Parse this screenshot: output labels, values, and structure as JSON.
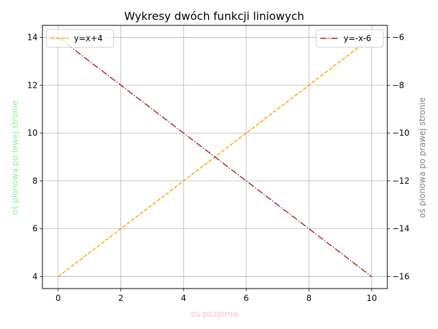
{
  "chart_data": {
    "type": "line",
    "title": "Wykresy dwóch funkcji liniowych",
    "xlabel": "oś pozioma",
    "ylabel_left": "oś pionowa po lewej stronie",
    "ylabel_right": "oś pionowa po prawej stronie",
    "xlim": [
      -0.5,
      10.5
    ],
    "ylim_left": [
      3.5,
      14.5
    ],
    "ylim_right": [
      -16.5,
      -5.5
    ],
    "x_ticks": [
      0,
      2,
      4,
      6,
      8,
      10
    ],
    "y_left_ticks": [
      4,
      6,
      8,
      10,
      12,
      14
    ],
    "y_right_ticks": [
      -16,
      -14,
      -12,
      -10,
      -8,
      -6
    ],
    "x_tick_labels": [
      "0",
      "2",
      "4",
      "6",
      "8",
      "10"
    ],
    "y_left_tick_labels": [
      "4",
      "6",
      "8",
      "10",
      "12",
      "14"
    ],
    "y_right_tick_labels": [
      "−16",
      "−14",
      "−12",
      "−10",
      "−8",
      "−6"
    ],
    "grid": true,
    "series": [
      {
        "name": "y=x+4",
        "axis": "left",
        "color": "#ffa500",
        "style": "dashed",
        "legend_position": "top-left",
        "x": [
          0,
          10
        ],
        "y": [
          4,
          14
        ]
      },
      {
        "name": "y=-x-6",
        "axis": "right",
        "color": "#a52a2a",
        "style": "dashdot",
        "legend_position": "top-right",
        "x": [
          0,
          10
        ],
        "y": [
          -6,
          -16
        ]
      }
    ],
    "colors": {
      "xlabel": "#ffc0cb",
      "ylabel_left": "#90ee90",
      "ylabel_right": "#808080",
      "grid": "#b0b0b0"
    }
  }
}
